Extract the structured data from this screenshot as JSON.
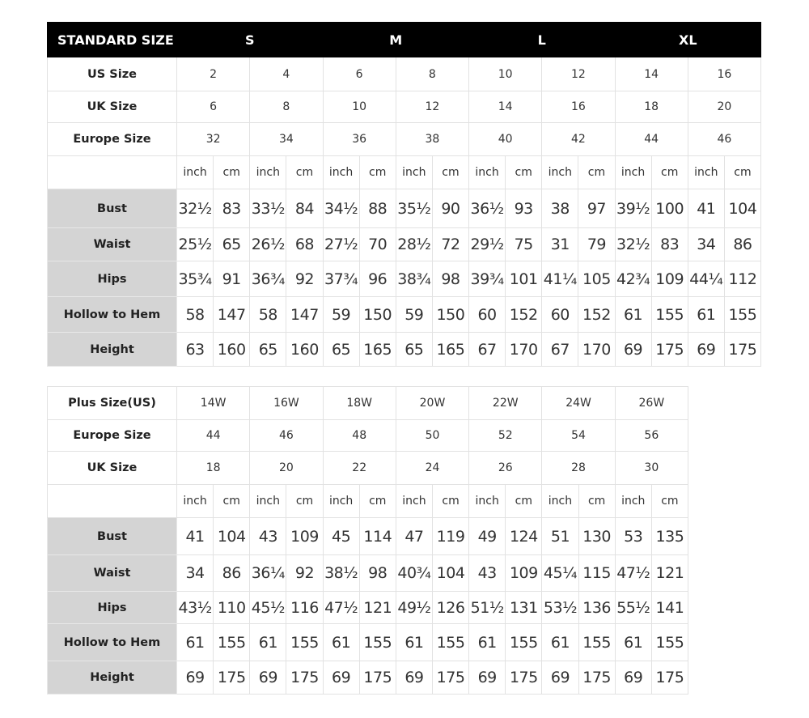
{
  "standard": {
    "header": [
      "STANDARD SIZE",
      "S",
      "M",
      "L",
      "XL"
    ],
    "size_rows": [
      {
        "label": "US Size",
        "values": [
          "2",
          "4",
          "6",
          "8",
          "10",
          "12",
          "14",
          "16"
        ]
      },
      {
        "label": "UK Size",
        "values": [
          "6",
          "8",
          "10",
          "12",
          "14",
          "16",
          "18",
          "20"
        ]
      },
      {
        "label": "Europe Size",
        "values": [
          "32",
          "34",
          "36",
          "38",
          "40",
          "42",
          "44",
          "46"
        ]
      }
    ],
    "units": [
      "inch",
      "cm"
    ],
    "measure_rows": [
      {
        "label": "Bust",
        "values": [
          "32½",
          "83",
          "33½",
          "84",
          "34½",
          "88",
          "35½",
          "90",
          "36½",
          "93",
          "38",
          "97",
          "39½",
          "100",
          "41",
          "104"
        ]
      },
      {
        "label": "Waist",
        "values": [
          "25½",
          "65",
          "26½",
          "68",
          "27½",
          "70",
          "28½",
          "72",
          "29½",
          "75",
          "31",
          "79",
          "32½",
          "83",
          "34",
          "86"
        ]
      },
      {
        "label": "Hips",
        "values": [
          "35¾",
          "91",
          "36¾",
          "92",
          "37¾",
          "96",
          "38¾",
          "98",
          "39¾",
          "101",
          "41¼",
          "105",
          "42¾",
          "109",
          "44¼",
          "112"
        ]
      },
      {
        "label": "Hollow to Hem",
        "values": [
          "58",
          "147",
          "58",
          "147",
          "59",
          "150",
          "59",
          "150",
          "60",
          "152",
          "60",
          "152",
          "61",
          "155",
          "61",
          "155"
        ]
      },
      {
        "label": "Height",
        "values": [
          "63",
          "160",
          "65",
          "160",
          "65",
          "165",
          "65",
          "165",
          "67",
          "170",
          "67",
          "170",
          "69",
          "175",
          "69",
          "175"
        ]
      }
    ]
  },
  "plus": {
    "size_rows": [
      {
        "label": "Plus Size(US)",
        "values": [
          "14W",
          "16W",
          "18W",
          "20W",
          "22W",
          "24W",
          "26W"
        ]
      },
      {
        "label": "Europe Size",
        "values": [
          "44",
          "46",
          "48",
          "50",
          "52",
          "54",
          "56"
        ]
      },
      {
        "label": "UK Size",
        "values": [
          "18",
          "20",
          "22",
          "24",
          "26",
          "28",
          "30"
        ]
      }
    ],
    "units": [
      "inch",
      "cm"
    ],
    "measure_rows": [
      {
        "label": "Bust",
        "values": [
          "41",
          "104",
          "43",
          "109",
          "45",
          "114",
          "47",
          "119",
          "49",
          "124",
          "51",
          "130",
          "53",
          "135"
        ]
      },
      {
        "label": "Waist",
        "values": [
          "34",
          "86",
          "36¼",
          "92",
          "38½",
          "98",
          "40¾",
          "104",
          "43",
          "109",
          "45¼",
          "115",
          "47½",
          "121"
        ]
      },
      {
        "label": "Hips",
        "values": [
          "43½",
          "110",
          "45½",
          "116",
          "47½",
          "121",
          "49½",
          "126",
          "51½",
          "131",
          "53½",
          "136",
          "55½",
          "141"
        ]
      },
      {
        "label": "Hollow to Hem",
        "values": [
          "61",
          "155",
          "61",
          "155",
          "61",
          "155",
          "61",
          "155",
          "61",
          "155",
          "61",
          "155",
          "61",
          "155"
        ]
      },
      {
        "label": "Height",
        "values": [
          "69",
          "175",
          "69",
          "175",
          "69",
          "175",
          "69",
          "175",
          "69",
          "175",
          "69",
          "175",
          "69",
          "175"
        ]
      }
    ]
  },
  "colors": {
    "header_bg": "#000000",
    "label_bg": "#d4d4d4",
    "grid": "#e2e2e2"
  }
}
